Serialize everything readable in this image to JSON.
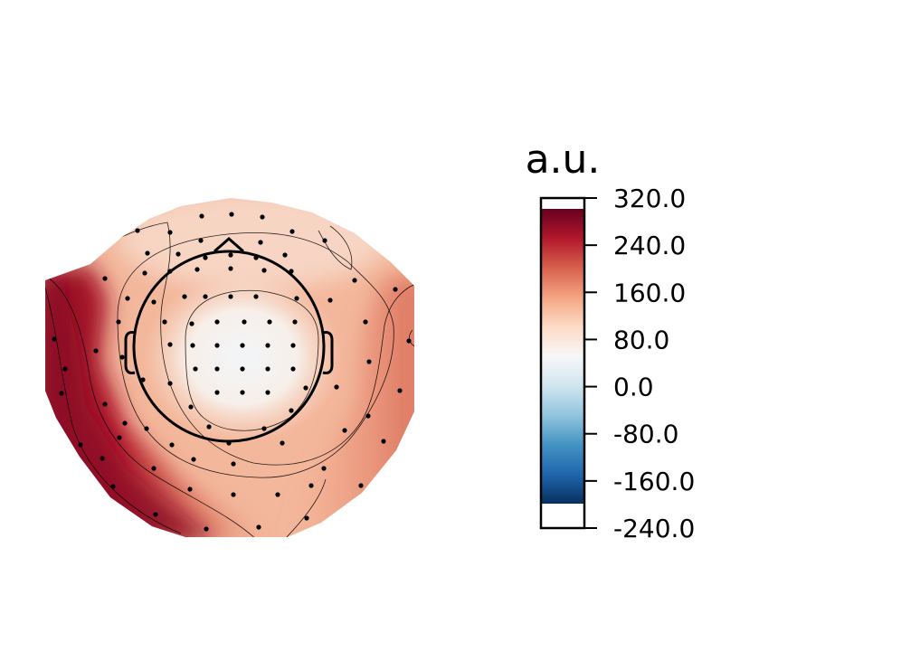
{
  "chart_data": {
    "type": "heatmap",
    "subtype": "topomap",
    "colormap": "RdBu_r",
    "colorbar": {
      "title": "a.u.",
      "ticks": [
        320.0,
        240.0,
        160.0,
        80.0,
        0.0,
        -80.0,
        -160.0,
        -240.0
      ],
      "tick_labels": [
        "320.0",
        "240.0",
        "160.0",
        "80.0",
        "0.0",
        "-80.0",
        "-160.0",
        "-240.0"
      ],
      "range": [
        -240,
        320
      ],
      "color_range": [
        -200,
        300
      ]
    },
    "value_regions": [
      {
        "region": "central",
        "value": 20
      },
      {
        "region": "head-circle-ring",
        "value": 110
      },
      {
        "region": "frontal",
        "value": 140
      },
      {
        "region": "right-temporal",
        "value": 180
      },
      {
        "region": "left-temporal",
        "value": 300
      },
      {
        "region": "left-posterior",
        "value": 300
      }
    ],
    "colors": {
      "max": "#67001f",
      "high": "#b2182b",
      "mid_high": "#d6604d",
      "light_high": "#f4a582",
      "pale_high": "#fddbc7",
      "zero": "#f7f7f7",
      "pale_low": "#d1e5f0",
      "light_low": "#92c5de",
      "mid_low": "#4393c3",
      "low": "#2166ac",
      "min": "#053061"
    }
  }
}
